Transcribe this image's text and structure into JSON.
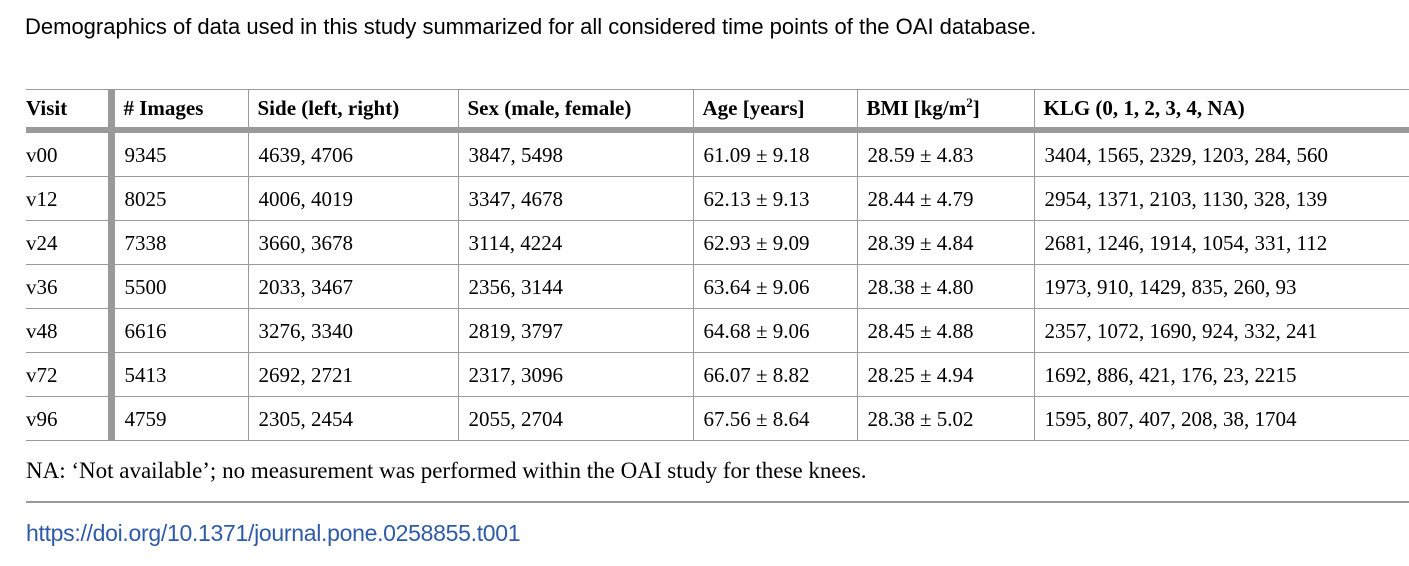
{
  "caption": "Demographics of data used in this study summarized for all considered time points of the OAI database.",
  "table": {
    "headers": {
      "visit": "Visit",
      "images": "# Images",
      "side": "Side (left, right)",
      "sex": "Sex (male, female)",
      "age": "Age [years]",
      "bmi_prefix": "BMI [kg/m",
      "bmi_sup": "2",
      "bmi_suffix": "]",
      "klg": "KLG (0, 1, 2, 3, 4, NA)"
    },
    "rows": [
      {
        "visit": "v00",
        "images": "9345",
        "side": "4639, 4706",
        "sex": "3847, 5498",
        "age": "61.09 ± 9.18",
        "bmi": "28.59 ± 4.83",
        "klg": "3404, 1565, 2329, 1203, 284, 560"
      },
      {
        "visit": "v12",
        "images": "8025",
        "side": "4006, 4019",
        "sex": "3347, 4678",
        "age": "62.13 ± 9.13",
        "bmi": "28.44 ± 4.79",
        "klg": "2954, 1371, 2103, 1130, 328, 139"
      },
      {
        "visit": "v24",
        "images": "7338",
        "side": "3660, 3678",
        "sex": "3114, 4224",
        "age": "62.93 ± 9.09",
        "bmi": "28.39 ± 4.84",
        "klg": "2681, 1246, 1914, 1054, 331, 112"
      },
      {
        "visit": "v36",
        "images": "5500",
        "side": "2033, 3467",
        "sex": "2356, 3144",
        "age": "63.64 ± 9.06",
        "bmi": "28.38 ± 4.80",
        "klg": "1973, 910, 1429, 835, 260, 93"
      },
      {
        "visit": "v48",
        "images": "6616",
        "side": "3276, 3340",
        "sex": "2819, 3797",
        "age": "64.68 ± 9.06",
        "bmi": "28.45 ± 4.88",
        "klg": "2357, 1072, 1690, 924, 332, 241"
      },
      {
        "visit": "v72",
        "images": "5413",
        "side": "2692, 2721",
        "sex": "2317, 3096",
        "age": "66.07 ± 8.82",
        "bmi": "28.25 ± 4.94",
        "klg": "1692, 886, 421, 176, 23, 2215"
      },
      {
        "visit": "v96",
        "images": "4759",
        "side": "2305, 2454",
        "sex": "2055, 2704",
        "age": "67.56 ± 8.64",
        "bmi": "28.38 ± 5.02",
        "klg": "1595, 807, 407, 208, 38, 1704"
      }
    ]
  },
  "note": "NA: ‘Not available’; no measurement was performed within the OAI study for these knees.",
  "doi": "https://doi.org/10.1371/journal.pone.0258855.t001"
}
